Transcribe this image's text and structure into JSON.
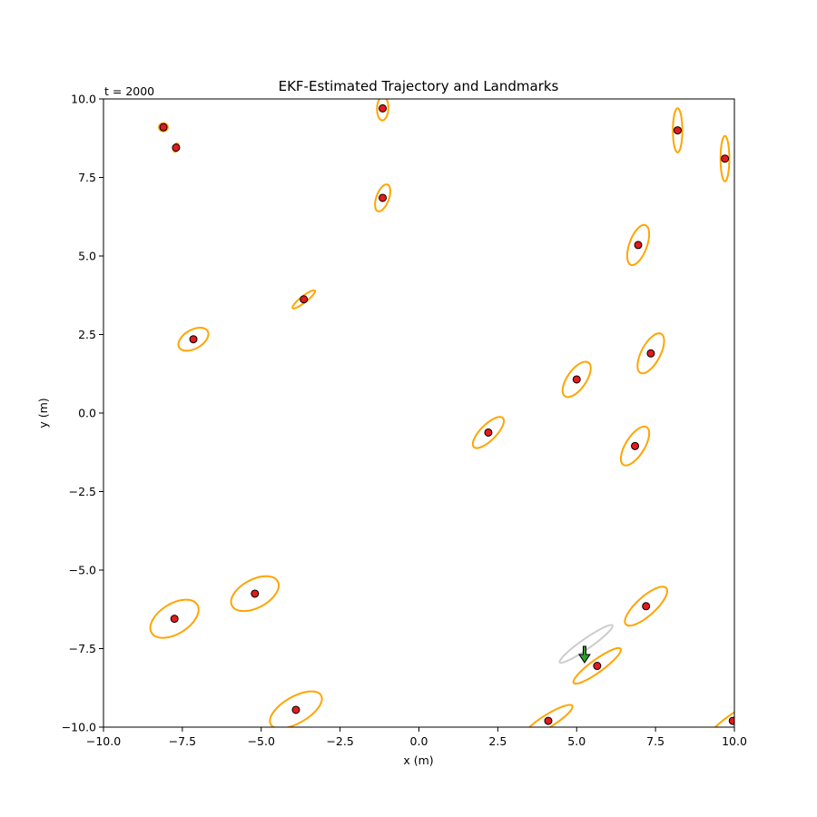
{
  "chart_data": {
    "type": "scatter",
    "title": "EKF-Estimated Trajectory and Landmarks",
    "annotation": "t = 2000",
    "xlabel": "x (m)",
    "ylabel": "y (m)",
    "xlim": [
      -10.0,
      10.0
    ],
    "ylim": [
      -10.0,
      10.0
    ],
    "xticks": [
      -10.0,
      -7.5,
      -5.0,
      -2.5,
      0.0,
      2.5,
      5.0,
      7.5,
      10.0
    ],
    "yticks": [
      -10.0,
      -7.5,
      -5.0,
      -2.5,
      0.0,
      2.5,
      5.0,
      7.5,
      10.0
    ],
    "xtick_labels": [
      "−10.0",
      "−7.5",
      "−5.0",
      "−2.5",
      "0.0",
      "2.5",
      "5.0",
      "7.5",
      "10.0"
    ],
    "ytick_labels": [
      "−10.0",
      "−7.5",
      "−5.0",
      "−2.5",
      "0.0",
      "2.5",
      "5.0",
      "7.5",
      "10.0"
    ],
    "grid": false,
    "colors": {
      "landmark_fill": "#e41a1c",
      "landmark_edge": "#000000",
      "ellipse": "#ffa500",
      "robot_ellipse": "#cccccc",
      "robot": "#2ca02c"
    },
    "landmarks": [
      {
        "x": -8.1,
        "y": 9.1,
        "a": 0.14,
        "b": 0.13,
        "angle": 0
      },
      {
        "x": -7.7,
        "y": 8.45,
        "a": 0.14,
        "b": 0.08,
        "angle": 70
      },
      {
        "x": -1.15,
        "y": 9.7,
        "a": 0.38,
        "b": 0.18,
        "angle": 88
      },
      {
        "x": 8.2,
        "y": 9.0,
        "a": 0.7,
        "b": 0.15,
        "angle": 90
      },
      {
        "x": 9.7,
        "y": 8.1,
        "a": 0.72,
        "b": 0.14,
        "angle": 90
      },
      {
        "x": -1.15,
        "y": 6.85,
        "a": 0.45,
        "b": 0.2,
        "angle": 70
      },
      {
        "x": 6.95,
        "y": 5.35,
        "a": 0.67,
        "b": 0.28,
        "angle": 70
      },
      {
        "x": -3.65,
        "y": 3.62,
        "a": 0.45,
        "b": 0.1,
        "angle": 38
      },
      {
        "x": -7.15,
        "y": 2.35,
        "a": 0.52,
        "b": 0.3,
        "angle": 30
      },
      {
        "x": 7.35,
        "y": 1.9,
        "a": 0.7,
        "b": 0.3,
        "angle": 62
      },
      {
        "x": 5.0,
        "y": 1.07,
        "a": 0.65,
        "b": 0.3,
        "angle": 55
      },
      {
        "x": 2.2,
        "y": -0.62,
        "a": 0.65,
        "b": 0.25,
        "angle": 45
      },
      {
        "x": 6.85,
        "y": -1.05,
        "a": 0.7,
        "b": 0.3,
        "angle": 58
      },
      {
        "x": -5.2,
        "y": -5.75,
        "a": 0.82,
        "b": 0.45,
        "angle": 28
      },
      {
        "x": -7.75,
        "y": -6.55,
        "a": 0.85,
        "b": 0.48,
        "angle": 32
      },
      {
        "x": 7.2,
        "y": -6.15,
        "a": 0.86,
        "b": 0.3,
        "angle": 42
      },
      {
        "x": 5.65,
        "y": -8.05,
        "a": 0.92,
        "b": 0.2,
        "angle": 36
      },
      {
        "x": -3.9,
        "y": -9.45,
        "a": 0.92,
        "b": 0.42,
        "angle": 30
      },
      {
        "x": 4.1,
        "y": -9.8,
        "a": 0.9,
        "b": 0.2,
        "angle": 32
      },
      {
        "x": 9.95,
        "y": -9.8,
        "a": 0.9,
        "b": 0.2,
        "angle": 35
      }
    ],
    "robot": {
      "x": 5.25,
      "y": -7.6,
      "heading_deg": -90,
      "ellipse": {
        "x": 5.3,
        "y": -7.35,
        "a": 1.02,
        "b": 0.16,
        "angle": 35
      }
    }
  }
}
